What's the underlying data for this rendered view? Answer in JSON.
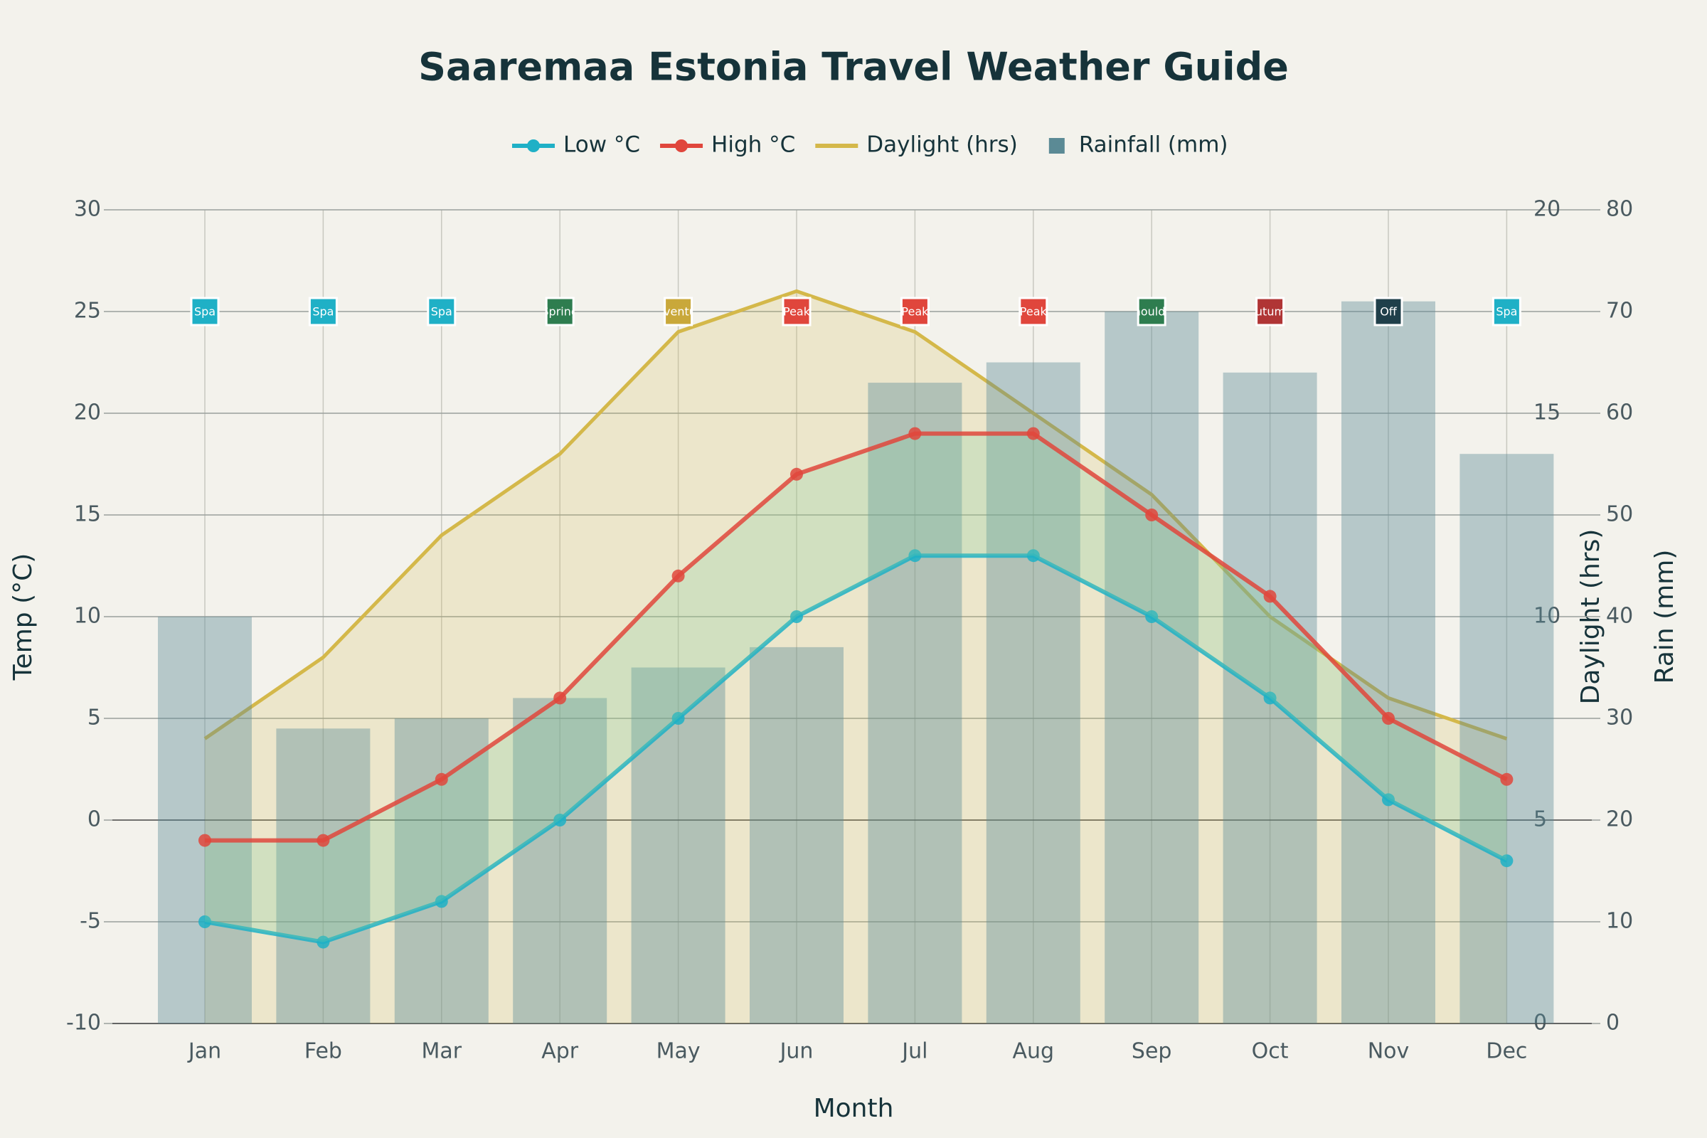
{
  "chart_data": {
    "type": "weather-combo",
    "title": "Saaremaa Estonia Travel Weather Guide",
    "x_label": "Month",
    "y_label": "Temp (°C)",
    "y2_label": "Daylight (hrs)",
    "y3_label": "Rain (mm)",
    "categories": [
      "Jan",
      "Feb",
      "Mar",
      "Apr",
      "May",
      "Jun",
      "Jul",
      "Aug",
      "Sep",
      "Oct",
      "Nov",
      "Dec"
    ],
    "series": [
      {
        "name": "Low °C",
        "color": "#1fb0c6",
        "kind": "line",
        "axis": "y",
        "values": [
          -5,
          -6,
          -4,
          0,
          5,
          10,
          13,
          13,
          10,
          6,
          1,
          -2
        ]
      },
      {
        "name": "High °C",
        "color": "#e0463c",
        "kind": "line",
        "axis": "y",
        "values": [
          -1,
          -1,
          2,
          6,
          12,
          17,
          19,
          19,
          15,
          11,
          5,
          2
        ]
      },
      {
        "name": "Daylight (hrs)",
        "color": "#d4b84a",
        "kind": "area",
        "axis": "y2",
        "values": [
          7,
          9,
          12,
          14,
          17,
          18,
          17,
          15,
          13,
          10,
          8,
          7
        ]
      },
      {
        "name": "Rainfall (mm)",
        "color": "#5b8a95",
        "kind": "bar",
        "axis": "y3",
        "values": [
          40,
          29,
          30,
          32,
          35,
          37,
          63,
          65,
          70,
          64,
          71,
          56
        ]
      }
    ],
    "seasons": {
      "values": [
        25,
        25,
        25,
        25,
        25,
        25,
        25,
        25,
        25,
        25,
        25,
        25
      ],
      "labels": [
        "Spa",
        "Spa",
        "Spa",
        "Spring",
        "Adventure",
        "Peak",
        "Peak",
        "Peak",
        "Shoulder",
        "Autumn",
        "Off",
        "Spa"
      ],
      "colors": [
        "#1fb0c6",
        "#1fb0c6",
        "#1fb0c6",
        "#2e7d4f",
        "#c9a83a",
        "#e0463c",
        "#e0463c",
        "#e0463c",
        "#2e7d4f",
        "#b03535",
        "#1f3f4a",
        "#1fb0c6"
      ]
    },
    "ylim": [
      -10,
      30
    ],
    "yticks": [
      -10,
      -5,
      0,
      5,
      10,
      15,
      20,
      25,
      30
    ],
    "y2lim": [
      0,
      20
    ],
    "y2ticks": [
      0,
      5,
      10,
      15,
      20
    ],
    "y3lim": [
      0,
      80
    ],
    "y3ticks": [
      0,
      10,
      20,
      30,
      40,
      50,
      60,
      70,
      80
    ],
    "grid": true
  }
}
